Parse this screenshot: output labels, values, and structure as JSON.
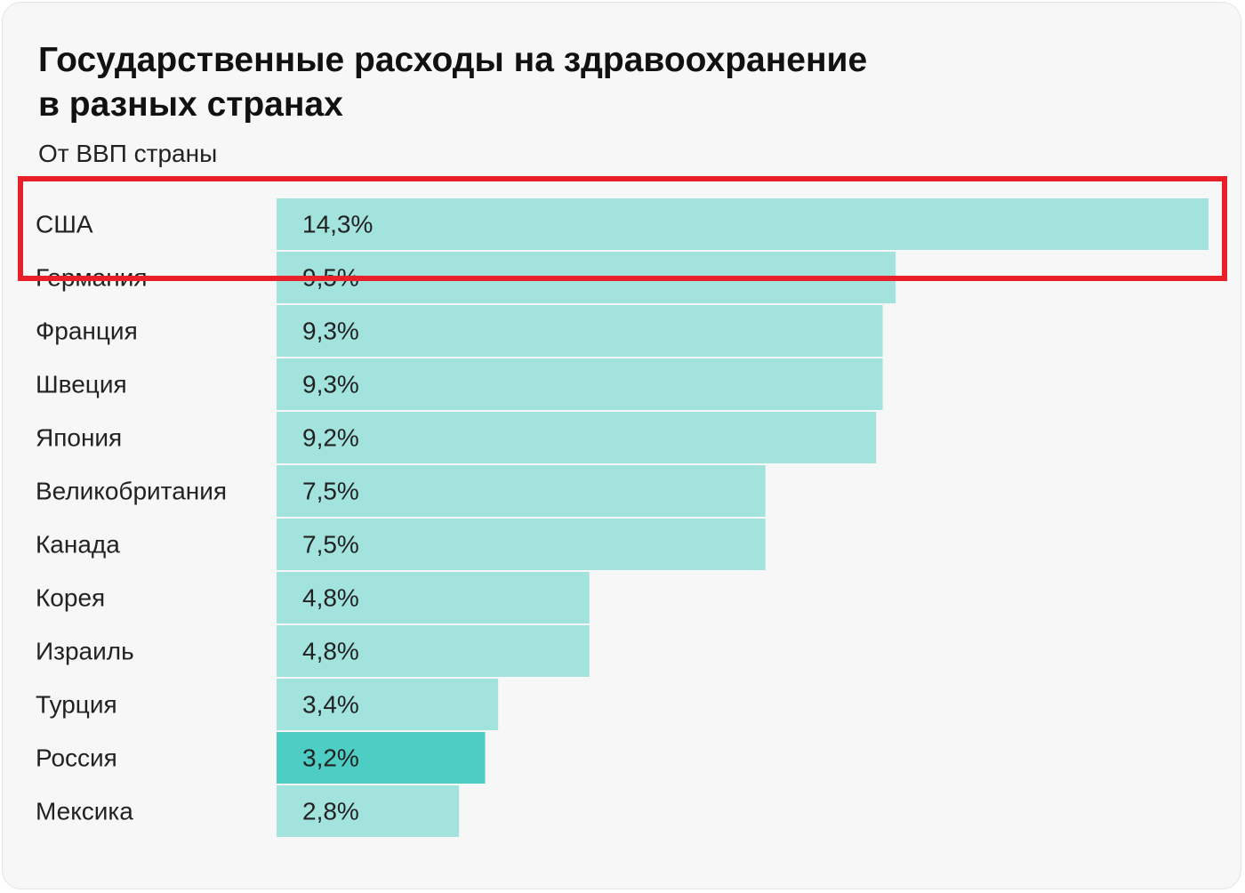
{
  "colors": {
    "bar": "#a3e3de",
    "bar_highlight": "#4ecdc4",
    "label_highlight": "#3fb8ae",
    "annotation": "#e8202a"
  },
  "chart_data": {
    "type": "bar",
    "orientation": "horizontal",
    "title": "Государственные расходы на здравоохранение в разных странах",
    "title_lines": [
      "Государственные расходы на здравоохранение",
      "в разных странах"
    ],
    "subtitle": "От ВВП страны",
    "unit": "%",
    "xlim": [
      0,
      14.3
    ],
    "categories": [
      "США",
      "Германия",
      "Франция",
      "Швеция",
      "Япония",
      "Великобритания",
      "Канада",
      "Корея",
      "Израиль",
      "Турция",
      "Россия",
      "Мексика"
    ],
    "values": [
      14.3,
      9.5,
      9.3,
      9.3,
      9.2,
      7.5,
      7.5,
      4.8,
      4.8,
      3.4,
      3.2,
      2.8
    ],
    "value_labels": [
      "14,3%",
      "9,5%",
      "9,3%",
      "9,3%",
      "9,2%",
      "7,5%",
      "7,5%",
      "4,8%",
      "4,8%",
      "3,4%",
      "3,2%",
      "2,8%"
    ],
    "highlighted_category": "Россия",
    "annotated_category": "США"
  }
}
